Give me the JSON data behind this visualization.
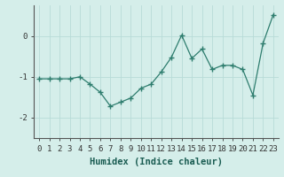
{
  "x": [
    0,
    1,
    2,
    3,
    4,
    5,
    6,
    7,
    8,
    9,
    10,
    11,
    12,
    13,
    14,
    15,
    16,
    17,
    18,
    19,
    20,
    21,
    22,
    23
  ],
  "y": [
    -1.05,
    -1.05,
    -1.05,
    -1.05,
    -1.0,
    -1.18,
    -1.38,
    -1.72,
    -1.62,
    -1.52,
    -1.28,
    -1.18,
    -0.88,
    -0.52,
    0.02,
    -0.55,
    -0.32,
    -0.82,
    -0.72,
    -0.72,
    -0.82,
    -1.45,
    -0.18,
    0.52
  ],
  "xlabel": "Humidex (Indice chaleur)",
  "ylim": [
    -2.5,
    0.75
  ],
  "xlim": [
    -0.5,
    23.5
  ],
  "yticks": [
    -2,
    -1,
    0
  ],
  "xticks": [
    0,
    1,
    2,
    3,
    4,
    5,
    6,
    7,
    8,
    9,
    10,
    11,
    12,
    13,
    14,
    15,
    16,
    17,
    18,
    19,
    20,
    21,
    22,
    23
  ],
  "line_color": "#2e7d6e",
  "marker": "+",
  "marker_size": 4,
  "bg_color": "#d5eeea",
  "grid_color": "#b8dbd7",
  "tick_label_fontsize": 6.5,
  "xlabel_fontsize": 7.5,
  "linewidth": 0.9
}
